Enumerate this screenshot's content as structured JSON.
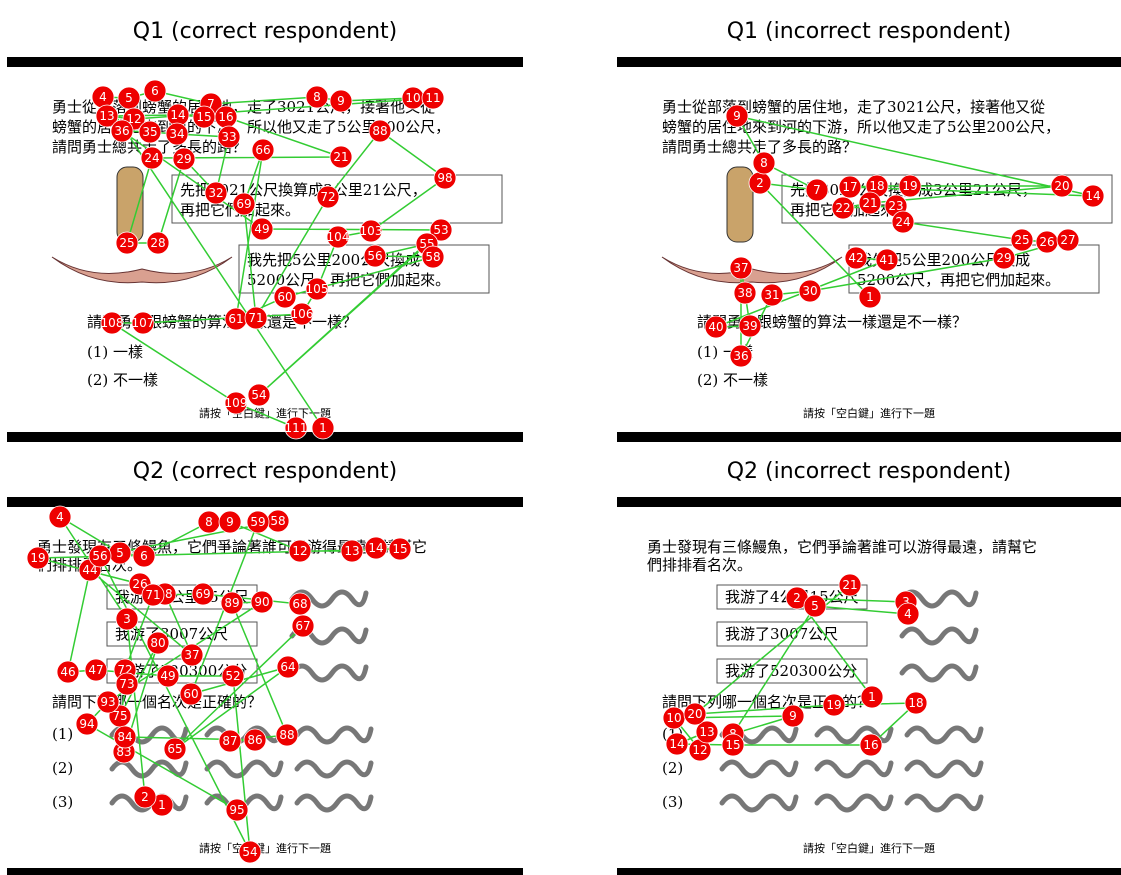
{
  "panels": [
    {
      "title": "Q1 (correct respondent)",
      "question": [
        "勇士從部落到螃蟹的居住地，走了3021公尺，接著他又從",
        "螃蟹的居住地來到河的下游，所以他又走了5公里200公尺，",
        "請問勇士總共走了多長的路？"
      ],
      "bubbles": [
        [
          "先把3021公尺換算成3公里21公尺，",
          "再把它們加起來。"
        ],
        [
          "我先把5公里200公尺換成",
          "5200公尺，再把它們加起來。"
        ]
      ],
      "prompt": "請問勇士跟螃蟹的算法一樣還是不一樣？",
      "options": [
        "(1) 一樣",
        "(2) 不一樣"
      ],
      "footer": "請按「空白鍵」進行下一題",
      "fixations": [
        1,
        4,
        5,
        6,
        7,
        8,
        9,
        10,
        11,
        12,
        13,
        14,
        15,
        16,
        21,
        24,
        25,
        28,
        29,
        32,
        33,
        34,
        35,
        36,
        49,
        53,
        54,
        55,
        56,
        58,
        60,
        61,
        66,
        69,
        71,
        72,
        88,
        98,
        103,
        104,
        105,
        106,
        107,
        108,
        109,
        111
      ]
    },
    {
      "title": "Q1 (incorrect respondent)",
      "question": [
        "勇士從部落到螃蟹的居住地，走了3021公尺，接著他又從",
        "螃蟹的居住地來到河的下游，所以他又走了5公里200公尺，",
        "請問勇士總共走了多長的路？"
      ],
      "bubbles": [
        [
          "先把3021公尺換算成3公里21公尺，",
          "再把它們加起來。"
        ],
        [
          "我先把5公里200公尺換成",
          "5200公尺，再把它們加起來。"
        ]
      ],
      "prompt": "請問勇士跟螃蟹的算法一樣還是不一樣？",
      "options": [
        "(1) 一樣",
        "(2) 不一樣"
      ],
      "footer": "請按「空白鍵」進行下一題",
      "fixations": [
        1,
        2,
        7,
        8,
        9,
        14,
        17,
        18,
        19,
        20,
        21,
        22,
        23,
        24,
        25,
        26,
        27,
        29,
        30,
        31,
        36,
        37,
        38,
        39,
        40,
        41,
        42
      ]
    },
    {
      "title": "Q2 (correct respondent)",
      "question": [
        "勇士發現有三條鰻魚，它們爭論著誰可以游得最遠，請幫它",
        "們排排看名次。"
      ],
      "bubbles": [
        [
          "我游了4公里15公尺"
        ],
        [
          "我游了3007公尺"
        ],
        [
          "我游了520300公分"
        ]
      ],
      "prompt": "請問下列哪一個名次是正確的？",
      "options": [
        "(1)",
        "(2)",
        "(3)"
      ],
      "footer": "請按「空白鍵」進行下一題",
      "fixations": [
        1,
        2,
        3,
        4,
        5,
        6,
        8,
        9,
        12,
        13,
        14,
        15,
        19,
        26,
        28,
        37,
        44,
        46,
        47,
        49,
        52,
        54,
        56,
        58,
        59,
        60,
        64,
        65,
        67,
        68,
        69,
        71,
        72,
        73,
        75,
        80,
        83,
        84,
        86,
        87,
        88,
        89,
        90,
        93,
        94,
        95
      ]
    },
    {
      "title": "Q2 (incorrect respondent)",
      "question": [
        "勇士發現有三條鰻魚，它們爭論著誰可以游得最遠，請幫它",
        "們排排看名次。"
      ],
      "bubbles": [
        [
          "我游了4公里15公尺"
        ],
        [
          "我游了3007公尺"
        ],
        [
          "我游了520300公分"
        ]
      ],
      "prompt": "請問下列哪一個名次是正確的？",
      "options": [
        "(1)",
        "(2)",
        "(3)"
      ],
      "footer": "請按「空白鍵」進行下一題",
      "fixations": [
        1,
        2,
        3,
        4,
        5,
        8,
        9,
        10,
        12,
        13,
        14,
        15,
        16,
        18,
        19,
        20,
        21
      ]
    }
  ]
}
